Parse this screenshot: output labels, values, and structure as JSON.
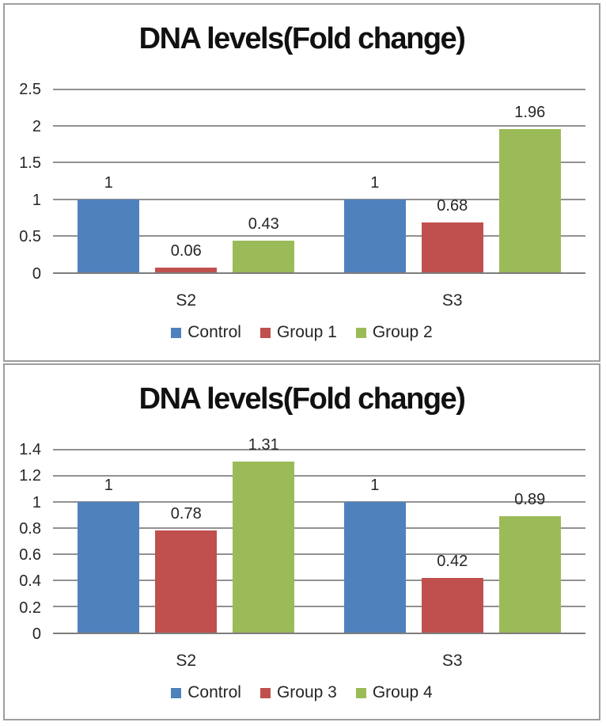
{
  "page": {
    "background": "#ffffff",
    "panel_border_color": "#9e9e9e",
    "gridline_color": "#919191",
    "axis_line_color": "#7d7d7d",
    "text_color": "#262626"
  },
  "chart_data": [
    {
      "type": "bar",
      "title": "DNA levels(Fold change)",
      "categories": [
        "S2",
        "S3"
      ],
      "series": [
        {
          "name": "Control",
          "color": "#4f81bd",
          "values": [
            1,
            1
          ]
        },
        {
          "name": "Group 1",
          "color": "#c0504d",
          "values": [
            0.06,
            0.68
          ]
        },
        {
          "name": "Group 2",
          "color": "#9bbb59",
          "values": [
            0.43,
            1.96
          ]
        }
      ],
      "data_labels": [
        [
          "1",
          "0.06",
          "0.43"
        ],
        [
          "1",
          "0.68",
          "1.96"
        ]
      ],
      "xlabel": "",
      "ylabel": "",
      "ylim": [
        0,
        2.5
      ],
      "yticks": [
        "0",
        "0.5",
        "1",
        "1.5",
        "2",
        "2.5"
      ],
      "grid": true,
      "legend_position": "bottom"
    },
    {
      "type": "bar",
      "title": "DNA levels(Fold change)",
      "categories": [
        "S2",
        "S3"
      ],
      "series": [
        {
          "name": "Control",
          "color": "#4f81bd",
          "values": [
            1,
            1
          ]
        },
        {
          "name": "Group 3",
          "color": "#c0504d",
          "values": [
            0.78,
            0.42
          ]
        },
        {
          "name": "Group 4",
          "color": "#9bbb59",
          "values": [
            1.31,
            0.89
          ]
        }
      ],
      "data_labels": [
        [
          "1",
          "0.78",
          "1.31"
        ],
        [
          "1",
          "0.42",
          "0.89"
        ]
      ],
      "xlabel": "",
      "ylabel": "",
      "ylim": [
        0,
        1.4
      ],
      "yticks": [
        "0",
        "0.2",
        "0.4",
        "0.6",
        "0.8",
        "1",
        "1.2",
        "1.4"
      ],
      "grid": true,
      "legend_position": "bottom"
    }
  ]
}
